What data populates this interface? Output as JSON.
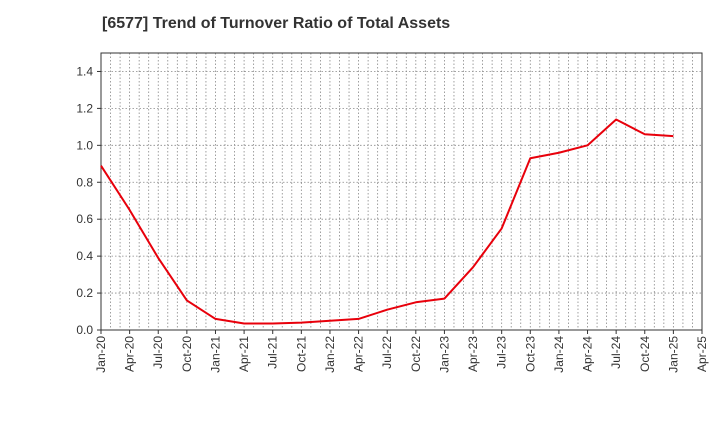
{
  "chart_data": {
    "type": "line",
    "title": "[6577]  Trend of Turnover Ratio of Total Assets",
    "xlabel": "",
    "ylabel": "",
    "ylim": [
      0,
      1.5
    ],
    "yticks": [
      "0.0",
      "0.2",
      "0.4",
      "0.6",
      "0.8",
      "1.0",
      "1.2",
      "1.4"
    ],
    "xticks": [
      "Jan-20",
      "Apr-20",
      "Jul-20",
      "Oct-20",
      "Jan-21",
      "Apr-21",
      "Jul-21",
      "Oct-21",
      "Jan-22",
      "Apr-22",
      "Jul-22",
      "Oct-22",
      "Jan-23",
      "Apr-23",
      "Jul-23",
      "Oct-23",
      "Jan-24",
      "Apr-24",
      "Jul-24",
      "Oct-24",
      "Jan-25",
      "Apr-25"
    ],
    "grid": true,
    "line_color": "#e8000b",
    "series": [
      {
        "x": [
          "Jan-20",
          "Apr-20",
          "Jul-20",
          "Oct-20",
          "Jan-21",
          "Apr-21",
          "Jul-21",
          "Oct-21",
          "Jan-22",
          "Apr-22",
          "Jul-22",
          "Oct-22",
          "Jan-23",
          "Apr-23",
          "Jul-23",
          "Oct-23",
          "Jan-24",
          "Apr-24",
          "Jul-24",
          "Oct-24",
          "Jan-25"
        ],
        "values": [
          0.89,
          0.65,
          0.39,
          0.16,
          0.06,
          0.035,
          0.035,
          0.04,
          0.05,
          0.06,
          0.11,
          0.15,
          0.17,
          0.34,
          0.55,
          0.93,
          0.96,
          1.0,
          1.14,
          1.06,
          1.05
        ]
      }
    ]
  }
}
